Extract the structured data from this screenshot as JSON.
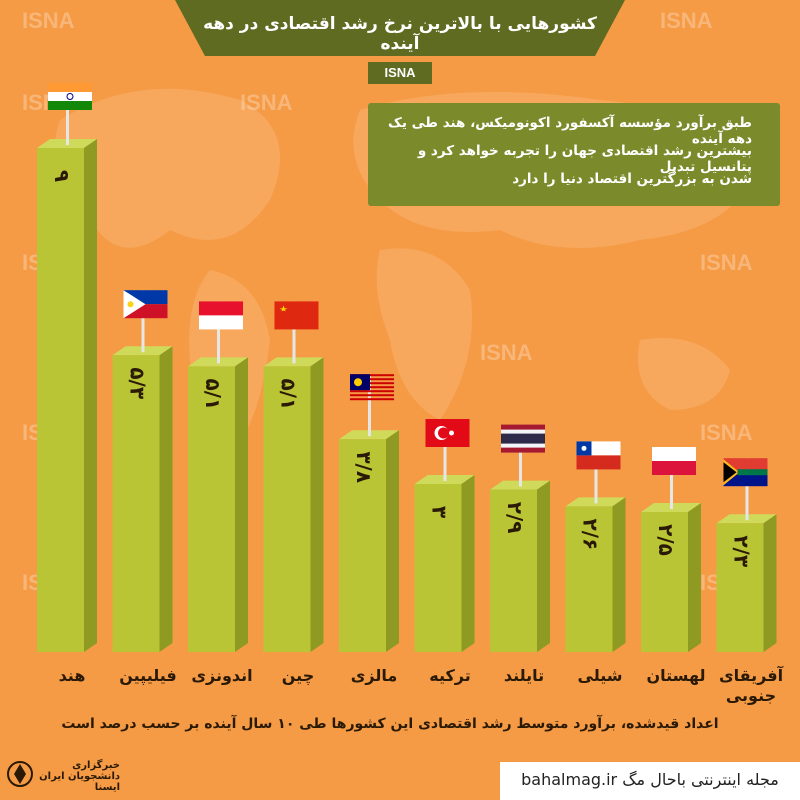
{
  "header": {
    "title": "کشورهایی با بالاترین نرخ رشد اقتصادی در دهه آینده",
    "agency": "ISNA"
  },
  "watermark": "ISNA",
  "description": {
    "lines": [
      "طبق برآورد مؤسسه آکسفورد اکونومیکس، هند طی یک دهه آینده",
      "بیشترین رشد اقتصادی جهان را تجربه خواهد کرد و پتانسیل تبدیل",
      "شدن به بزرگترین اقتصاد دنیا را دارد"
    ]
  },
  "chart_data": {
    "type": "bar",
    "categories": [
      "هند",
      "فیلیپین",
      "اندونزی",
      "چین",
      "مالزی",
      "ترکیه",
      "تایلند",
      "شیلی",
      "لهستان",
      "آفریقای جنوبی"
    ],
    "values": [
      9,
      5.3,
      5.1,
      5.1,
      3.8,
      3,
      2.9,
      2.6,
      2.5,
      2.3
    ],
    "value_labels": [
      "۹",
      "۵/۳",
      "۵/۱",
      "۵/۱",
      "۳/۸",
      "۳",
      "۲/۹",
      "۲/۶",
      "۲/۵",
      "۲/۳"
    ],
    "flags": [
      "india-flag",
      "philippines-flag",
      "indonesia-flag",
      "china-flag",
      "malaysia-flag",
      "turkey-flag",
      "thailand-flag",
      "chile-flag",
      "poland-flag",
      "south-africa-flag"
    ],
    "bar_color": "#B9C535",
    "bar_shade_color": "#8E9A22",
    "title": "کشورهایی با بالاترین نرخ رشد اقتصادی در دهه آینده"
  },
  "footnote": "اعداد قیدشده، برآورد متوسط رشد اقتصادی این کشورها طی ۱۰ سال آینده بر حسب درصد است",
  "logo_text": "خبرگزاری دانشجویان ایران ایسنا",
  "bottom_bar": "bahalmag.ir مجله اینترنتی باحال مگ",
  "colors": {
    "background": "#F59A45",
    "banner": "#5E6B20",
    "description_box": "#7B8A2A"
  }
}
